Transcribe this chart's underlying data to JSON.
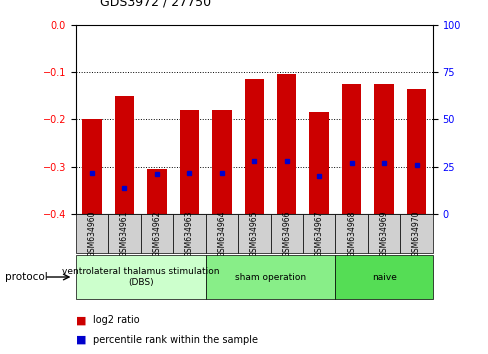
{
  "title": "GDS3972 / 27750",
  "samples": [
    "GSM634960",
    "GSM634961",
    "GSM634962",
    "GSM634963",
    "GSM634964",
    "GSM634965",
    "GSM634966",
    "GSM634967",
    "GSM634968",
    "GSM634969",
    "GSM634970"
  ],
  "log2_ratio": [
    -0.2,
    -0.15,
    -0.305,
    -0.18,
    -0.18,
    -0.115,
    -0.105,
    -0.185,
    -0.125,
    -0.125,
    -0.135
  ],
  "percentile_rank": [
    22,
    14,
    21,
    22,
    22,
    28,
    28,
    20,
    27,
    27,
    26
  ],
  "bar_color": "#cc0000",
  "dot_color": "#0000cc",
  "ylim_left": [
    -0.4,
    0
  ],
  "ylim_right": [
    0,
    100
  ],
  "yticks_left": [
    0,
    -0.1,
    -0.2,
    -0.3,
    -0.4
  ],
  "yticks_right": [
    0,
    25,
    50,
    75,
    100
  ],
  "grid_values": [
    -0.1,
    -0.2,
    -0.3
  ],
  "protocols": [
    {
      "label": "ventrolateral thalamus stimulation\n(DBS)",
      "start": 0,
      "end": 3,
      "color": "#ccffcc"
    },
    {
      "label": "sham operation",
      "start": 4,
      "end": 7,
      "color": "#88ee88"
    },
    {
      "label": "naive",
      "start": 8,
      "end": 10,
      "color": "#55dd55"
    }
  ],
  "legend_red": "log2 ratio",
  "legend_blue": "percentile rank within the sample",
  "xlabel_protocol": "protocol"
}
